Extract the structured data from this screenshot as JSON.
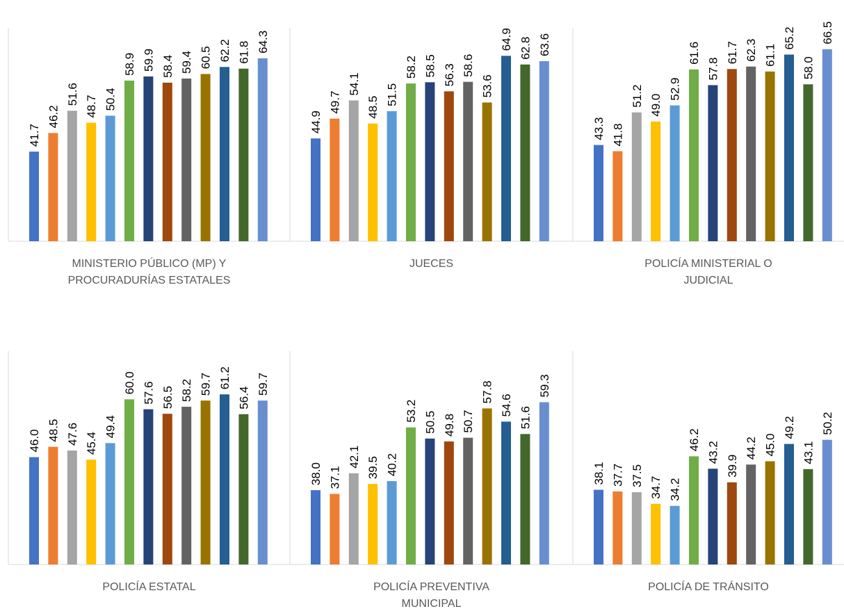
{
  "palette": [
    "#4472C4",
    "#ED7D31",
    "#A5A5A5",
    "#FFC000",
    "#5B9BD5",
    "#70AD47",
    "#264478",
    "#9E480E",
    "#636363",
    "#997300",
    "#255E91",
    "#43682B",
    "#698ED0"
  ],
  "chart_data": [
    {
      "type": "bar",
      "title": "",
      "category_label": [
        "MINISTERIO PÚBLICO (MP) Y",
        "PROCURADURÍAS ESTATALES"
      ],
      "values": [
        41.7,
        46.2,
        51.6,
        48.7,
        50.4,
        58.9,
        59.9,
        58.4,
        59.4,
        60.5,
        62.2,
        61.8,
        64.3
      ],
      "ylim": [
        20,
        70
      ],
      "grid": false
    },
    {
      "type": "bar",
      "title": "",
      "category_label": [
        "JUECES"
      ],
      "values": [
        44.9,
        49.7,
        54.1,
        48.5,
        51.5,
        58.2,
        58.5,
        56.3,
        58.6,
        53.6,
        64.9,
        62.8,
        63.6
      ],
      "ylim": [
        20,
        70
      ],
      "grid": false
    },
    {
      "type": "bar",
      "title": "",
      "category_label": [
        "POLICÍA MINISTERIAL O",
        "JUDICIAL"
      ],
      "values": [
        43.3,
        41.8,
        51.2,
        49.0,
        52.9,
        61.6,
        57.8,
        61.7,
        62.3,
        61.1,
        65.2,
        58.0,
        66.5
      ],
      "ylim": [
        20,
        70
      ],
      "grid": false
    },
    {
      "type": "bar",
      "title": "",
      "category_label": [
        "POLICÍA ESTATAL"
      ],
      "values": [
        46.0,
        48.5,
        47.6,
        45.4,
        49.4,
        60.0,
        57.6,
        56.5,
        58.2,
        59.7,
        61.2,
        56.4,
        59.7
      ],
      "ylim": [
        20,
        70
      ],
      "grid": false
    },
    {
      "type": "bar",
      "title": "",
      "category_label": [
        "POLICÍA PREVENTIVA",
        "MUNICIPAL"
      ],
      "values": [
        38.0,
        37.1,
        42.1,
        39.5,
        40.2,
        53.2,
        50.5,
        49.8,
        50.7,
        57.8,
        54.6,
        51.6,
        59.3
      ],
      "ylim": [
        20,
        70
      ],
      "grid": false
    },
    {
      "type": "bar",
      "title": "",
      "category_label": [
        "POLICÍA DE TRÁNSITO"
      ],
      "values": [
        38.1,
        37.7,
        37.5,
        34.7,
        34.2,
        46.2,
        43.2,
        39.9,
        44.2,
        45.0,
        49.2,
        43.1,
        50.2
      ],
      "ylim": [
        20,
        70
      ],
      "grid": false
    }
  ]
}
